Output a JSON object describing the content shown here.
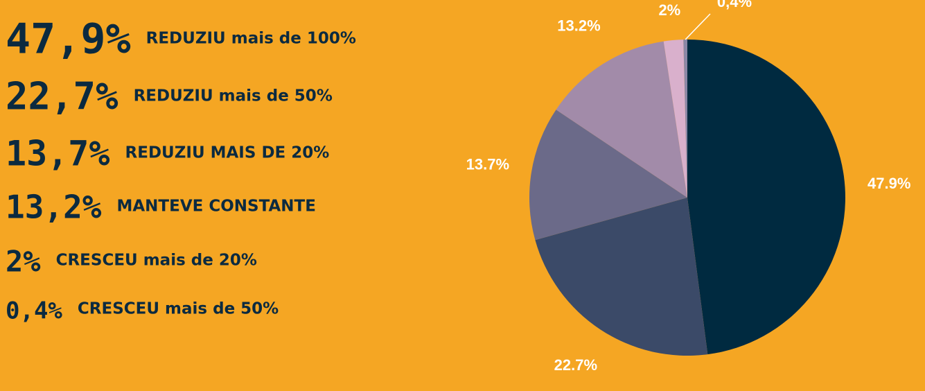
{
  "chart_data": {
    "type": "pie",
    "categories": [
      "REDUZIU mais de 100%",
      "REDUZIU mais de 50%",
      "REDUZIU MAIS DE 20%",
      "MANTEVE CONSTANTE",
      "CRESCEU mais de 20%",
      "CRESCEU mais de 50%"
    ],
    "legend_labels": [
      "47,9%",
      "22,7%",
      "13,7%",
      "13,2%",
      "2%",
      "0,4%"
    ],
    "values": [
      47.9,
      22.7,
      13.7,
      13.2,
      2,
      0.4
    ],
    "value_labels": [
      "47.9%",
      "22.7%",
      "13.7%",
      "13.2%",
      "2%",
      "0,4%"
    ],
    "colors": [
      "#002a40",
      "#3b4a68",
      "#6b6a89",
      "#a28ba9",
      "#d9b0cc",
      "#8c87a6"
    ]
  }
}
